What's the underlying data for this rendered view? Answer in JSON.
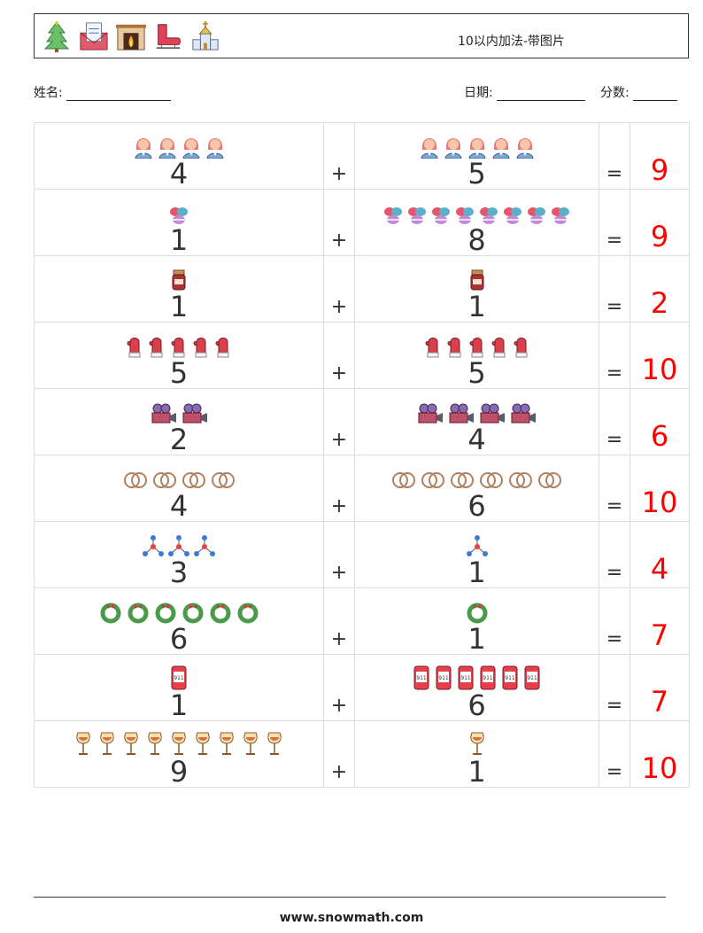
{
  "header": {
    "title": "10以内加法-带图片",
    "icons": [
      "christmas-tree-icon",
      "wish-list-mail-icon",
      "fireplace-icon",
      "ice-skate-icon",
      "church-icon"
    ]
  },
  "fields": {
    "name_label": "姓名:",
    "date_label": "日期:",
    "score_label": "分数:"
  },
  "symbols": {
    "plus": "+",
    "equals": "="
  },
  "problems": [
    {
      "a": 4,
      "b": 5,
      "sum": 9,
      "icon": "woman-icon"
    },
    {
      "a": 1,
      "b": 8,
      "sum": 9,
      "icon": "macaron-icon"
    },
    {
      "a": 1,
      "b": 1,
      "sum": 2,
      "icon": "jam-jar-icon"
    },
    {
      "a": 5,
      "b": 5,
      "sum": 10,
      "icon": "mitten-icon"
    },
    {
      "a": 2,
      "b": 4,
      "sum": 6,
      "icon": "camera-icon"
    },
    {
      "a": 4,
      "b": 6,
      "sum": 10,
      "icon": "rings-icon"
    },
    {
      "a": 3,
      "b": 1,
      "sum": 4,
      "icon": "molecule-icon"
    },
    {
      "a": 6,
      "b": 1,
      "sum": 7,
      "icon": "wreath-icon"
    },
    {
      "a": 1,
      "b": 6,
      "sum": 7,
      "icon": "phone-911-icon"
    },
    {
      "a": 9,
      "b": 1,
      "sum": 10,
      "icon": "wine-glass-icon"
    }
  ],
  "footer": {
    "site": "www.snowmath.com"
  }
}
